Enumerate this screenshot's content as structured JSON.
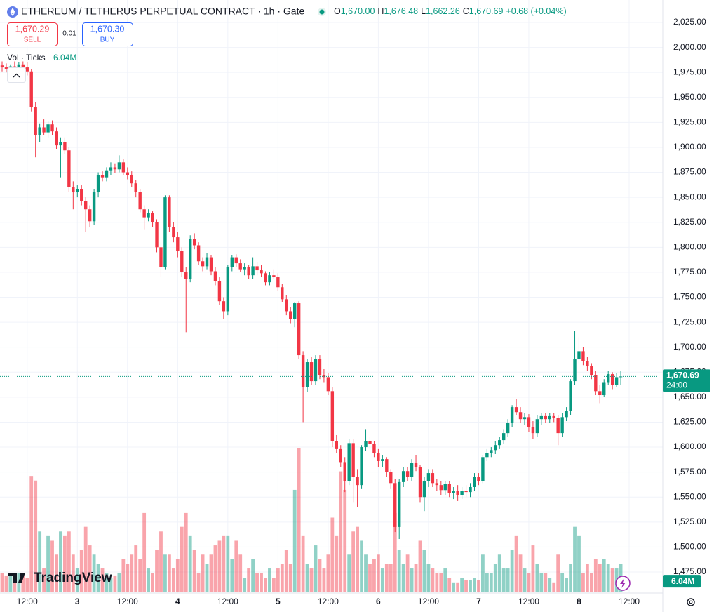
{
  "chart_data": {
    "type": "candlestick",
    "title": "ETHEREUM / TETHERUS PERPETUAL CONTRACT · 1h · Gate",
    "legend_ohlc": [
      {
        "label": "O",
        "value": "1,670.00"
      },
      {
        "label": "H",
        "value": "1,676.48"
      },
      {
        "label": "L",
        "value": "1,662.26"
      },
      {
        "label": "C",
        "value": "1,670.69"
      }
    ],
    "legend_change": "+0.68 (+0.04%)",
    "trade": {
      "sell_price": "1,670.29",
      "sell_label": "SELL",
      "spread": "0.01",
      "buy_price": "1,670.30",
      "buy_label": "BUY"
    },
    "volume_legend": "Vol · Ticks",
    "volume_legend_value": "6.04M",
    "last_price": {
      "value": 1670.69,
      "label": "1,670.69"
    },
    "countdown": "24:00",
    "last_volume_label": "6.04M",
    "watermark": "TradingView",
    "up_color": "#089981",
    "down_color": "#f23645",
    "grid": true,
    "ylim": [
      1475,
      2025
    ],
    "yticks": [
      {
        "value": 1475,
        "label": "1,475.00"
      },
      {
        "value": 1500,
        "label": "1,500.00"
      },
      {
        "value": 1525,
        "label": "1,525.00"
      },
      {
        "value": 1550,
        "label": "1,550.00"
      },
      {
        "value": 1575,
        "label": "1,575.00"
      },
      {
        "value": 1600,
        "label": "1,600.00"
      },
      {
        "value": 1625,
        "label": "1,625.00"
      },
      {
        "value": 1650,
        "label": "1,650.00"
      },
      {
        "value": 1675,
        "label": "1,675.00"
      },
      {
        "value": 1700,
        "label": "1,700.00"
      },
      {
        "value": 1725,
        "label": "1,725.00"
      },
      {
        "value": 1750,
        "label": "1,750.00"
      },
      {
        "value": 1775,
        "label": "1,775.00"
      },
      {
        "value": 1800,
        "label": "1,800.00"
      },
      {
        "value": 1825,
        "label": "1,825.00"
      },
      {
        "value": 1850,
        "label": "1,850.00"
      },
      {
        "value": 1875,
        "label": "1,875.00"
      },
      {
        "value": 1900,
        "label": "1,900.00"
      },
      {
        "value": 1925,
        "label": "1,925.00"
      },
      {
        "value": 1950,
        "label": "1,950.00"
      },
      {
        "value": 1975,
        "label": "1,975.00"
      },
      {
        "value": 2000,
        "label": "2,000.00"
      },
      {
        "value": 2025,
        "label": "2,025.00"
      }
    ],
    "xticks": [
      {
        "value": 6,
        "label": "12:00"
      },
      {
        "value": 18,
        "label": "3"
      },
      {
        "value": 30,
        "label": "12:00"
      },
      {
        "value": 42,
        "label": "4"
      },
      {
        "value": 54,
        "label": "12:00"
      },
      {
        "value": 66,
        "label": "5"
      },
      {
        "value": 78,
        "label": "12:00"
      },
      {
        "value": 90,
        "label": "6"
      },
      {
        "value": 102,
        "label": "12:00"
      },
      {
        "value": 114,
        "label": "7"
      },
      {
        "value": 126,
        "label": "12:00"
      },
      {
        "value": 138,
        "label": "8"
      },
      {
        "value": 150,
        "label": "12:00"
      }
    ],
    "volume_ylim": [
      0,
      32
    ],
    "candles": [
      [
        1982,
        1986,
        1976,
        1980
      ],
      [
        1980,
        1984,
        1975,
        1978
      ],
      [
        1978,
        1983,
        1974,
        1981
      ],
      [
        1981,
        1986,
        1977,
        1979
      ],
      [
        1979,
        1985,
        1976,
        1983
      ],
      [
        1983,
        1986,
        1978,
        1980
      ],
      [
        1980,
        1985,
        1972,
        1976
      ],
      [
        1976,
        1978,
        1936,
        1940
      ],
      [
        1940,
        1945,
        1890,
        1912
      ],
      [
        1912,
        1924,
        1905,
        1920
      ],
      [
        1920,
        1928,
        1912,
        1915
      ],
      [
        1915,
        1926,
        1910,
        1923
      ],
      [
        1923,
        1927,
        1912,
        1916
      ],
      [
        1916,
        1920,
        1898,
        1902
      ],
      [
        1902,
        1910,
        1870,
        1905
      ],
      [
        1905,
        1910,
        1893,
        1897
      ],
      [
        1897,
        1900,
        1855,
        1860
      ],
      [
        1860,
        1866,
        1838,
        1855
      ],
      [
        1855,
        1862,
        1850,
        1858
      ],
      [
        1858,
        1862,
        1842,
        1846
      ],
      [
        1846,
        1850,
        1815,
        1838
      ],
      [
        1838,
        1842,
        1820,
        1826
      ],
      [
        1826,
        1858,
        1822,
        1855
      ],
      [
        1855,
        1875,
        1850,
        1872
      ],
      [
        1872,
        1876,
        1866,
        1870
      ],
      [
        1870,
        1880,
        1866,
        1877
      ],
      [
        1877,
        1885,
        1872,
        1880
      ],
      [
        1880,
        1884,
        1874,
        1878
      ],
      [
        1878,
        1892,
        1875,
        1885
      ],
      [
        1885,
        1888,
        1872,
        1875
      ],
      [
        1875,
        1880,
        1868,
        1872
      ],
      [
        1872,
        1876,
        1860,
        1864
      ],
      [
        1864,
        1867,
        1850,
        1855
      ],
      [
        1855,
        1858,
        1835,
        1838
      ],
      [
        1838,
        1842,
        1818,
        1830
      ],
      [
        1830,
        1838,
        1826,
        1834
      ],
      [
        1834,
        1836,
        1820,
        1825
      ],
      [
        1825,
        1828,
        1795,
        1800
      ],
      [
        1800,
        1805,
        1770,
        1780
      ],
      [
        1780,
        1852,
        1778,
        1850
      ],
      [
        1850,
        1852,
        1815,
        1820
      ],
      [
        1820,
        1825,
        1805,
        1810
      ],
      [
        1810,
        1815,
        1790,
        1796
      ],
      [
        1796,
        1800,
        1770,
        1775
      ],
      [
        1775,
        1780,
        1715,
        1768
      ],
      [
        1768,
        1812,
        1765,
        1808
      ],
      [
        1808,
        1814,
        1798,
        1802
      ],
      [
        1802,
        1805,
        1782,
        1786
      ],
      [
        1786,
        1790,
        1776,
        1781
      ],
      [
        1781,
        1794,
        1778,
        1790
      ],
      [
        1790,
        1792,
        1772,
        1776
      ],
      [
        1776,
        1780,
        1762,
        1766
      ],
      [
        1766,
        1770,
        1742,
        1746
      ],
      [
        1746,
        1750,
        1728,
        1736
      ],
      [
        1736,
        1782,
        1732,
        1780
      ],
      [
        1780,
        1792,
        1776,
        1790
      ],
      [
        1790,
        1793,
        1780,
        1784
      ],
      [
        1784,
        1788,
        1775,
        1778
      ],
      [
        1778,
        1784,
        1772,
        1780
      ],
      [
        1780,
        1782,
        1768,
        1772
      ],
      [
        1772,
        1790,
        1768,
        1781
      ],
      [
        1781,
        1785,
        1772,
        1777
      ],
      [
        1777,
        1782,
        1770,
        1774
      ],
      [
        1774,
        1776,
        1762,
        1765
      ],
      [
        1765,
        1775,
        1762,
        1772
      ],
      [
        1772,
        1778,
        1768,
        1770
      ],
      [
        1770,
        1774,
        1756,
        1760
      ],
      [
        1760,
        1763,
        1745,
        1748
      ],
      [
        1748,
        1752,
        1732,
        1736
      ],
      [
        1736,
        1740,
        1724,
        1728
      ],
      [
        1728,
        1745,
        1720,
        1744
      ],
      [
        1744,
        1746,
        1688,
        1692
      ],
      [
        1692,
        1696,
        1625,
        1660
      ],
      [
        1660,
        1688,
        1655,
        1685
      ],
      [
        1685,
        1690,
        1662,
        1666
      ],
      [
        1666,
        1692,
        1662,
        1688
      ],
      [
        1688,
        1692,
        1668,
        1672
      ],
      [
        1672,
        1678,
        1665,
        1670
      ],
      [
        1670,
        1674,
        1652,
        1656
      ],
      [
        1656,
        1660,
        1600,
        1606
      ],
      [
        1606,
        1612,
        1594,
        1598
      ],
      [
        1598,
        1602,
        1580,
        1585
      ],
      [
        1585,
        1590,
        1555,
        1566
      ],
      [
        1566,
        1608,
        1562,
        1604
      ],
      [
        1604,
        1608,
        1545,
        1570
      ],
      [
        1570,
        1578,
        1540,
        1562
      ],
      [
        1562,
        1602,
        1558,
        1600
      ],
      [
        1600,
        1618,
        1596,
        1606
      ],
      [
        1606,
        1610,
        1598,
        1603
      ],
      [
        1603,
        1606,
        1590,
        1594
      ],
      [
        1594,
        1598,
        1580,
        1586
      ],
      [
        1586,
        1592,
        1580,
        1588
      ],
      [
        1588,
        1590,
        1570,
        1575
      ],
      [
        1575,
        1578,
        1558,
        1564
      ],
      [
        1564,
        1568,
        1515,
        1520
      ],
      [
        1520,
        1568,
        1508,
        1565
      ],
      [
        1565,
        1580,
        1560,
        1576
      ],
      [
        1576,
        1580,
        1566,
        1570
      ],
      [
        1570,
        1588,
        1566,
        1584
      ],
      [
        1584,
        1592,
        1576,
        1580
      ],
      [
        1580,
        1582,
        1545,
        1550
      ],
      [
        1550,
        1570,
        1536,
        1566
      ],
      [
        1566,
        1578,
        1560,
        1574
      ],
      [
        1574,
        1578,
        1560,
        1564
      ],
      [
        1564,
        1568,
        1556,
        1562
      ],
      [
        1562,
        1566,
        1552,
        1557
      ],
      [
        1557,
        1566,
        1552,
        1563
      ],
      [
        1563,
        1566,
        1550,
        1554
      ],
      [
        1554,
        1560,
        1548,
        1556
      ],
      [
        1556,
        1562,
        1546,
        1552
      ],
      [
        1552,
        1560,
        1548,
        1556
      ],
      [
        1556,
        1562,
        1550,
        1555
      ],
      [
        1555,
        1564,
        1550,
        1560
      ],
      [
        1560,
        1574,
        1556,
        1570
      ],
      [
        1570,
        1574,
        1562,
        1566
      ],
      [
        1566,
        1592,
        1564,
        1590
      ],
      [
        1590,
        1598,
        1586,
        1594
      ],
      [
        1594,
        1600,
        1590,
        1597
      ],
      [
        1597,
        1606,
        1593,
        1602
      ],
      [
        1602,
        1610,
        1598,
        1607
      ],
      [
        1607,
        1618,
        1603,
        1614
      ],
      [
        1614,
        1628,
        1610,
        1624
      ],
      [
        1624,
        1642,
        1620,
        1640
      ],
      [
        1640,
        1648,
        1632,
        1635
      ],
      [
        1635,
        1640,
        1624,
        1628
      ],
      [
        1628,
        1634,
        1622,
        1630
      ],
      [
        1630,
        1633,
        1615,
        1620
      ],
      [
        1620,
        1626,
        1608,
        1614
      ],
      [
        1614,
        1632,
        1610,
        1628
      ],
      [
        1628,
        1634,
        1622,
        1631
      ],
      [
        1631,
        1634,
        1624,
        1628
      ],
      [
        1628,
        1634,
        1624,
        1631
      ],
      [
        1631,
        1634,
        1625,
        1629
      ],
      [
        1629,
        1632,
        1602,
        1614
      ],
      [
        1614,
        1634,
        1610,
        1630
      ],
      [
        1630,
        1640,
        1626,
        1636
      ],
      [
        1636,
        1668,
        1632,
        1666
      ],
      [
        1666,
        1716,
        1662,
        1688
      ],
      [
        1688,
        1710,
        1684,
        1696
      ],
      [
        1696,
        1700,
        1682,
        1686
      ],
      [
        1686,
        1690,
        1676,
        1681
      ],
      [
        1681,
        1684,
        1668,
        1672
      ],
      [
        1672,
        1676,
        1652,
        1656
      ],
      [
        1656,
        1662,
        1644,
        1652
      ],
      [
        1652,
        1668,
        1650,
        1665
      ],
      [
        1665,
        1676,
        1662,
        1673
      ],
      [
        1673,
        1675,
        1658,
        1662
      ],
      [
        1662,
        1674,
        1660,
        1670
      ],
      [
        1670,
        1676.48,
        1662.26,
        1670.69
      ]
    ],
    "volumes": [
      4,
      3.5,
      4,
      3,
      4,
      3.5,
      3,
      25,
      24,
      13,
      5,
      12,
      11,
      8,
      13,
      12,
      13,
      8,
      5,
      9,
      14,
      10,
      8,
      6,
      5,
      4,
      3,
      3.5,
      4,
      7,
      6,
      8,
      10,
      7,
      17,
      5,
      4,
      9,
      13,
      8,
      8,
      5,
      7,
      14,
      17,
      12,
      9,
      4,
      8,
      6,
      8,
      10,
      11,
      12,
      12,
      7,
      11,
      8,
      3,
      5,
      7,
      4,
      4,
      3,
      5,
      3,
      5,
      6,
      9,
      6,
      22,
      31,
      12,
      6,
      5,
      10,
      7,
      5,
      8,
      16,
      12,
      26,
      22,
      8,
      13,
      14,
      11,
      8,
      6,
      7,
      8,
      5,
      6,
      6,
      17,
      9,
      6,
      8,
      5,
      6,
      11,
      9,
      6,
      5,
      4,
      4,
      5,
      3,
      2,
      2,
      3,
      2.5,
      2.5,
      3,
      2.5,
      8,
      4,
      4,
      6,
      8,
      5,
      5,
      9,
      12,
      8,
      5,
      4,
      10,
      6,
      4,
      4,
      3,
      2,
      8,
      4,
      3,
      6,
      14,
      12,
      4,
      6,
      4,
      7,
      6,
      7,
      6,
      5,
      5,
      6.04
    ]
  }
}
